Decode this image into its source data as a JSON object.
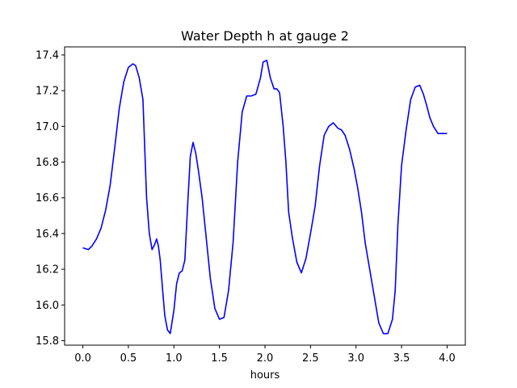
{
  "chart_data": {
    "type": "line",
    "title": "Water Depth h at gauge 2",
    "xlabel": "hours",
    "ylabel": "",
    "xlim": [
      -0.2,
      4.2
    ],
    "ylim": [
      15.775,
      17.445
    ],
    "grid": false,
    "legend": "none",
    "xticks": [
      0.0,
      0.5,
      1.0,
      1.5,
      2.0,
      2.5,
      3.0,
      3.5,
      4.0
    ],
    "xtick_labels": [
      "0.0",
      "0.5",
      "1.0",
      "1.5",
      "2.0",
      "2.5",
      "3.0",
      "3.5",
      "4.0"
    ],
    "yticks": [
      15.8,
      16.0,
      16.2,
      16.4,
      16.6,
      16.8,
      17.0,
      17.2,
      17.4
    ],
    "ytick_labels": [
      "15.8",
      "16.0",
      "16.2",
      "16.4",
      "16.6",
      "16.8",
      "17.0",
      "17.2",
      "17.4"
    ],
    "series": [
      {
        "color": "#0000ff",
        "x": [
          0.0,
          0.06,
          0.1,
          0.15,
          0.2,
          0.25,
          0.3,
          0.35,
          0.4,
          0.45,
          0.5,
          0.55,
          0.58,
          0.62,
          0.66,
          0.7,
          0.73,
          0.76,
          0.79,
          0.81,
          0.83,
          0.85,
          0.88,
          0.9,
          0.93,
          0.96,
          1.0,
          1.03,
          1.06,
          1.09,
          1.12,
          1.15,
          1.18,
          1.21,
          1.24,
          1.27,
          1.31,
          1.35,
          1.4,
          1.45,
          1.5,
          1.55,
          1.6,
          1.65,
          1.7,
          1.75,
          1.8,
          1.85,
          1.9,
          1.95,
          1.98,
          2.02,
          2.06,
          2.1,
          2.13,
          2.16,
          2.2,
          2.23,
          2.26,
          2.3,
          2.35,
          2.4,
          2.45,
          2.5,
          2.55,
          2.6,
          2.65,
          2.7,
          2.75,
          2.8,
          2.84,
          2.88,
          2.93,
          2.98,
          3.02,
          3.06,
          3.1,
          3.15,
          3.2,
          3.25,
          3.3,
          3.35,
          3.4,
          3.43,
          3.46,
          3.5,
          3.55,
          3.6,
          3.65,
          3.7,
          3.74,
          3.78,
          3.81,
          3.85,
          3.9,
          3.95,
          4.0
        ],
        "y": [
          16.32,
          16.31,
          16.33,
          16.37,
          16.43,
          16.53,
          16.67,
          16.88,
          17.1,
          17.25,
          17.33,
          17.35,
          17.34,
          17.27,
          17.15,
          16.6,
          16.4,
          16.31,
          16.34,
          16.37,
          16.33,
          16.25,
          16.06,
          15.94,
          15.86,
          15.84,
          15.97,
          16.12,
          16.18,
          16.19,
          16.25,
          16.55,
          16.83,
          16.91,
          16.85,
          16.75,
          16.6,
          16.4,
          16.15,
          15.98,
          15.92,
          15.93,
          16.08,
          16.35,
          16.8,
          17.08,
          17.17,
          17.17,
          17.18,
          17.27,
          17.36,
          17.37,
          17.27,
          17.21,
          17.21,
          17.19,
          17.0,
          16.8,
          16.52,
          16.38,
          16.24,
          16.18,
          16.26,
          16.4,
          16.55,
          16.78,
          16.95,
          17.0,
          17.02,
          16.99,
          16.98,
          16.95,
          16.87,
          16.76,
          16.65,
          16.52,
          16.35,
          16.2,
          16.05,
          15.9,
          15.84,
          15.84,
          15.92,
          16.08,
          16.45,
          16.78,
          16.98,
          17.15,
          17.22,
          17.23,
          17.18,
          17.11,
          17.05,
          17.0,
          16.96,
          16.96,
          16.96
        ]
      }
    ]
  }
}
